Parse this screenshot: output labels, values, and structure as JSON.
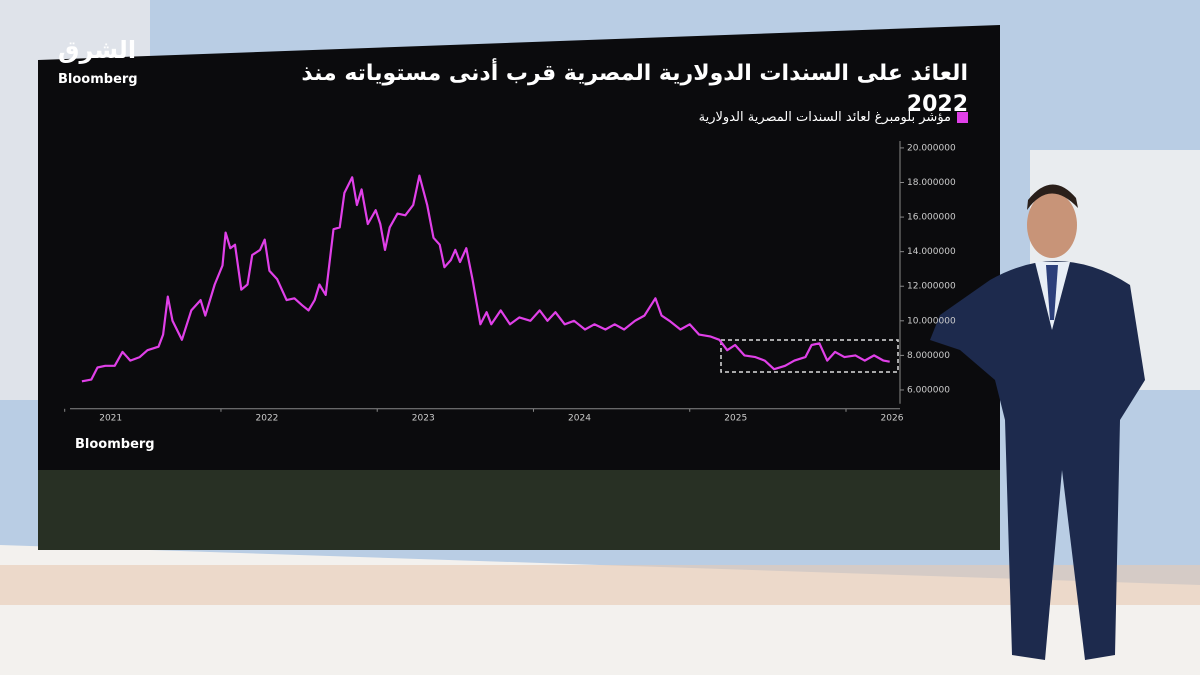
{
  "logo": {
    "arabic": "الشرق",
    "english": "Bloomberg"
  },
  "chart_data": {
    "type": "line",
    "title": "العائد على السندات الدولارية المصرية قرب أدنى مستوياته منذ 2022",
    "source": "Bloomberg",
    "x": [
      2021.11,
      2021.17,
      2021.21,
      2021.26,
      2021.32,
      2021.37,
      2021.42,
      2021.48,
      2021.53,
      2021.6,
      2021.63,
      2021.66,
      2021.69,
      2021.75,
      2021.81,
      2021.87,
      2021.9,
      2021.96,
      2022.01,
      2022.03,
      2022.06,
      2022.09,
      2022.13,
      2022.17,
      2022.2,
      2022.25,
      2022.28,
      2022.31,
      2022.36,
      2022.42,
      2022.47,
      2022.52,
      2022.56,
      2022.6,
      2022.63,
      2022.67,
      2022.72,
      2022.76,
      2022.79,
      2022.84,
      2022.87,
      2022.9,
      2022.94,
      2022.99,
      2023.02,
      2023.05,
      2023.08,
      2023.13,
      2023.18,
      2023.23,
      2023.27,
      2023.32,
      2023.36,
      2023.4,
      2023.43,
      2023.47,
      2023.5,
      2023.53,
      2023.57,
      2023.61,
      2023.66,
      2023.7,
      2023.73,
      2023.79,
      2023.85,
      2023.91,
      2023.98,
      2024.04,
      2024.09,
      2024.14,
      2024.2,
      2024.26,
      2024.33,
      2024.39,
      2024.46,
      2024.52,
      2024.58,
      2024.65,
      2024.71,
      2024.78,
      2024.82,
      2024.87,
      2024.94,
      2025.0,
      2025.06,
      2025.13,
      2025.19,
      2025.24,
      2025.29,
      2025.35,
      2025.42,
      2025.48,
      2025.54,
      2025.61,
      2025.67,
      2025.74,
      2025.78,
      2025.83,
      2025.88,
      2025.93,
      2025.99,
      2026.06,
      2026.12,
      2026.18,
      2026.24,
      2026.28
    ],
    "series": [
      {
        "name": "مؤشر بلومبرغ لعائد السندات المصرية الدولارية",
        "color": "#e040e8",
        "values": [
          6.5,
          6.6,
          7.3,
          7.4,
          7.4,
          8.2,
          7.7,
          7.9,
          8.3,
          8.5,
          9.2,
          11.4,
          10.0,
          8.9,
          10.6,
          11.2,
          10.3,
          12.1,
          13.2,
          15.1,
          14.2,
          14.4,
          11.8,
          12.1,
          13.8,
          14.1,
          14.7,
          12.9,
          12.4,
          11.2,
          11.3,
          10.9,
          10.6,
          11.2,
          12.1,
          11.5,
          15.3,
          15.4,
          17.4,
          18.3,
          16.7,
          17.6,
          15.6,
          16.4,
          15.6,
          14.1,
          15.4,
          16.2,
          16.1,
          16.7,
          18.4,
          16.7,
          14.8,
          14.4,
          13.1,
          13.5,
          14.1,
          13.4,
          14.2,
          12.4,
          9.8,
          10.5,
          9.8,
          10.6,
          9.8,
          10.2,
          10.0,
          10.6,
          10.0,
          10.5,
          9.8,
          10.0,
          9.5,
          9.8,
          9.5,
          9.8,
          9.5,
          10.0,
          10.3,
          11.3,
          10.3,
          10.0,
          9.5,
          9.8,
          9.2,
          9.1,
          8.9,
          8.3,
          8.6,
          8.0,
          7.9,
          7.7,
          7.2,
          7.4,
          7.7,
          7.9,
          8.6,
          8.7,
          7.7,
          8.2,
          7.9,
          8.0,
          7.7,
          8.0,
          7.7,
          7.635
        ]
      }
    ],
    "xlim": [
      2021.0,
      2026.32
    ],
    "xticks": [
      2021,
      2022,
      2023,
      2024,
      2025,
      2026
    ],
    "ylim": [
      5.2,
      20.4
    ],
    "yticks": [
      {
        "value": 6,
        "label": "6.000000"
      },
      {
        "value": 8,
        "label": "8.000000"
      },
      {
        "value": 10,
        "label": "10.000000"
      },
      {
        "value": 12,
        "label": "12.000000"
      },
      {
        "value": 14,
        "label": "14.000000"
      },
      {
        "value": 16,
        "label": "16.000000"
      },
      {
        "value": 18,
        "label": "18.000000"
      },
      {
        "value": 20,
        "label": "20.000000"
      }
    ]
  }
}
